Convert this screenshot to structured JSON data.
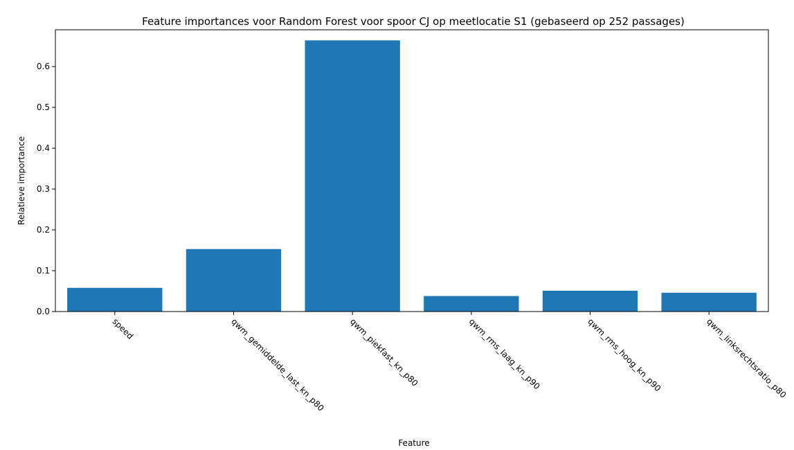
{
  "chart_data": {
    "type": "bar",
    "title": "Feature importances voor Random Forest voor spoor CJ op meetlocatie S1 (gebaseerd op 252 passages)",
    "xlabel": "Feature",
    "ylabel": "Relatieve importance",
    "categories": [
      "speed",
      "qwm_gemiddelde_last_kn_p80",
      "qwm_piekfast_kn_p80",
      "qwm_rms_laag_kn_p90",
      "qwm_rms_hoog_kn_p90",
      "qwm_linksrechtsratio_p80"
    ],
    "values": [
      0.058,
      0.153,
      0.664,
      0.038,
      0.051,
      0.046
    ],
    "ylim": [
      0,
      0.69
    ],
    "yticks": [
      0.0,
      0.1,
      0.2,
      0.3,
      0.4,
      0.5,
      0.6
    ],
    "ytick_labels": [
      "0.0",
      "0.1",
      "0.2",
      "0.3",
      "0.4",
      "0.5",
      "0.6"
    ],
    "bar_color": "#1f77b4",
    "grid": false,
    "legend": "none",
    "xtick_rotation": "-45"
  }
}
